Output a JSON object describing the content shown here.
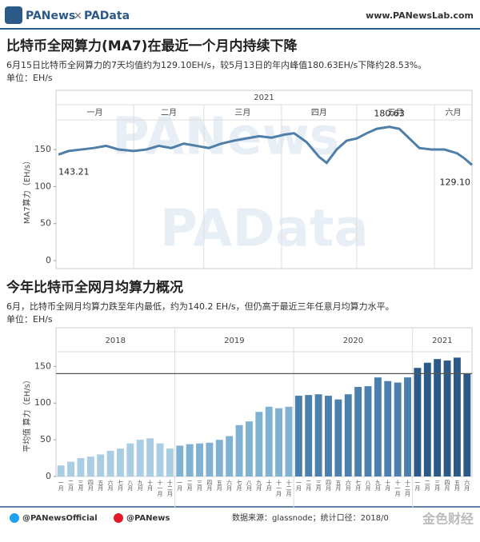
{
  "header": {
    "logo": "PANews",
    "cross": "×",
    "logo2": "PAData",
    "site": "www.PANewsLab.com"
  },
  "watermarks": [
    "PANews",
    "PAData",
    "金色财经"
  ],
  "footer": {
    "twitter": "@PANewsOfficial",
    "weibo": "@PANews",
    "source": "数据来源：glassnode；统计口径：2018/0"
  },
  "chart_data": [
    {
      "type": "line",
      "title": "比特币全网算力(MA7)在最近一个月内持续下降",
      "subtitle": "6月15日比特币全网算力的7天均值约为129.10EH/s，较5月13日的年内峰值180.63EH/s下降约28.53%。",
      "unit": "单位：EH/s",
      "ylabel": "MA7算力（EH/s）",
      "year": "2021",
      "months": [
        {
          "label": "一月",
          "start": 0,
          "end": 31
        },
        {
          "label": "二月",
          "start": 31,
          "end": 59
        },
        {
          "label": "三月",
          "start": 59,
          "end": 90
        },
        {
          "label": "四月",
          "start": 90,
          "end": 120
        },
        {
          "label": "五月",
          "start": 120,
          "end": 151
        },
        {
          "label": "六月",
          "start": 151,
          "end": 166
        }
      ],
      "xlim": [
        0,
        166
      ],
      "ylim": [
        0,
        190
      ],
      "yticks": [
        0,
        50,
        100,
        150
      ],
      "color": "#4f7fa8",
      "series": [
        {
          "name": "MA7",
          "color": "#4f7fa8",
          "x": [
            1,
            5,
            10,
            15,
            20,
            25,
            31,
            36,
            41,
            46,
            51,
            56,
            61,
            66,
            71,
            76,
            81,
            86,
            91,
            95,
            100,
            105,
            108,
            112,
            116,
            120,
            124,
            128,
            133,
            137,
            141,
            145,
            150,
            155,
            160,
            163,
            166
          ],
          "values": [
            143.21,
            148,
            150,
            152,
            155,
            150,
            148,
            150,
            155,
            152,
            158,
            155,
            152,
            158,
            162,
            165,
            168,
            166,
            170,
            172,
            160,
            140,
            132,
            150,
            162,
            165,
            172,
            178,
            180.63,
            178,
            165,
            152,
            150,
            150,
            145,
            138,
            129.1
          ]
        }
      ],
      "annotations": [
        {
          "index": 0,
          "label": "143.21"
        },
        {
          "index": 28,
          "label": "180.63"
        },
        {
          "index": 36,
          "label": "129.10"
        }
      ]
    },
    {
      "type": "bar",
      "title": "今年比特币全网月均算力概况",
      "subtitle": "6月，比特币全网月均算力跌至年内最低，约为140.2 EH/s，但仍高于最近三年任意月均算力水平。",
      "unit": "单位：EH/s",
      "ylabel": "平均值 算力（EH/s）",
      "ylim": [
        0,
        170
      ],
      "yticks": [
        0,
        50,
        100,
        150
      ],
      "groups": [
        {
          "name": "2018",
          "color": "#a9cde3",
          "categories": [
            "一月",
            "二月",
            "三月",
            "四月",
            "五月",
            "六月",
            "七月",
            "八月",
            "九月",
            "十月",
            "十一月",
            "十二月"
          ],
          "values": [
            15,
            20,
            25,
            27,
            30,
            35,
            38,
            45,
            50,
            52,
            45,
            38
          ]
        },
        {
          "name": "2019",
          "color": "#7fb1d3",
          "categories": [
            "一月",
            "二月",
            "三月",
            "四月",
            "五月",
            "六月",
            "七月",
            "八月",
            "九月",
            "十月",
            "十一月",
            "十二月"
          ],
          "values": [
            42,
            44,
            45,
            46,
            50,
            55,
            70,
            75,
            88,
            95,
            93,
            95
          ]
        },
        {
          "name": "2020",
          "color": "#4a7fae",
          "categories": [
            "一月",
            "二月",
            "三月",
            "四月",
            "五月",
            "六月",
            "七月",
            "八月",
            "九月",
            "十月",
            "十一月",
            "十二月"
          ],
          "values": [
            110,
            111,
            112,
            110,
            105,
            112,
            122,
            123,
            135,
            130,
            128,
            135
          ]
        },
        {
          "name": "2021",
          "color": "#2b5a89",
          "categories": [
            "一月",
            "二月",
            "三月",
            "四月",
            "五月",
            "六月"
          ],
          "values": [
            148,
            155,
            160,
            158,
            162,
            140.2
          ]
        }
      ]
    }
  ]
}
